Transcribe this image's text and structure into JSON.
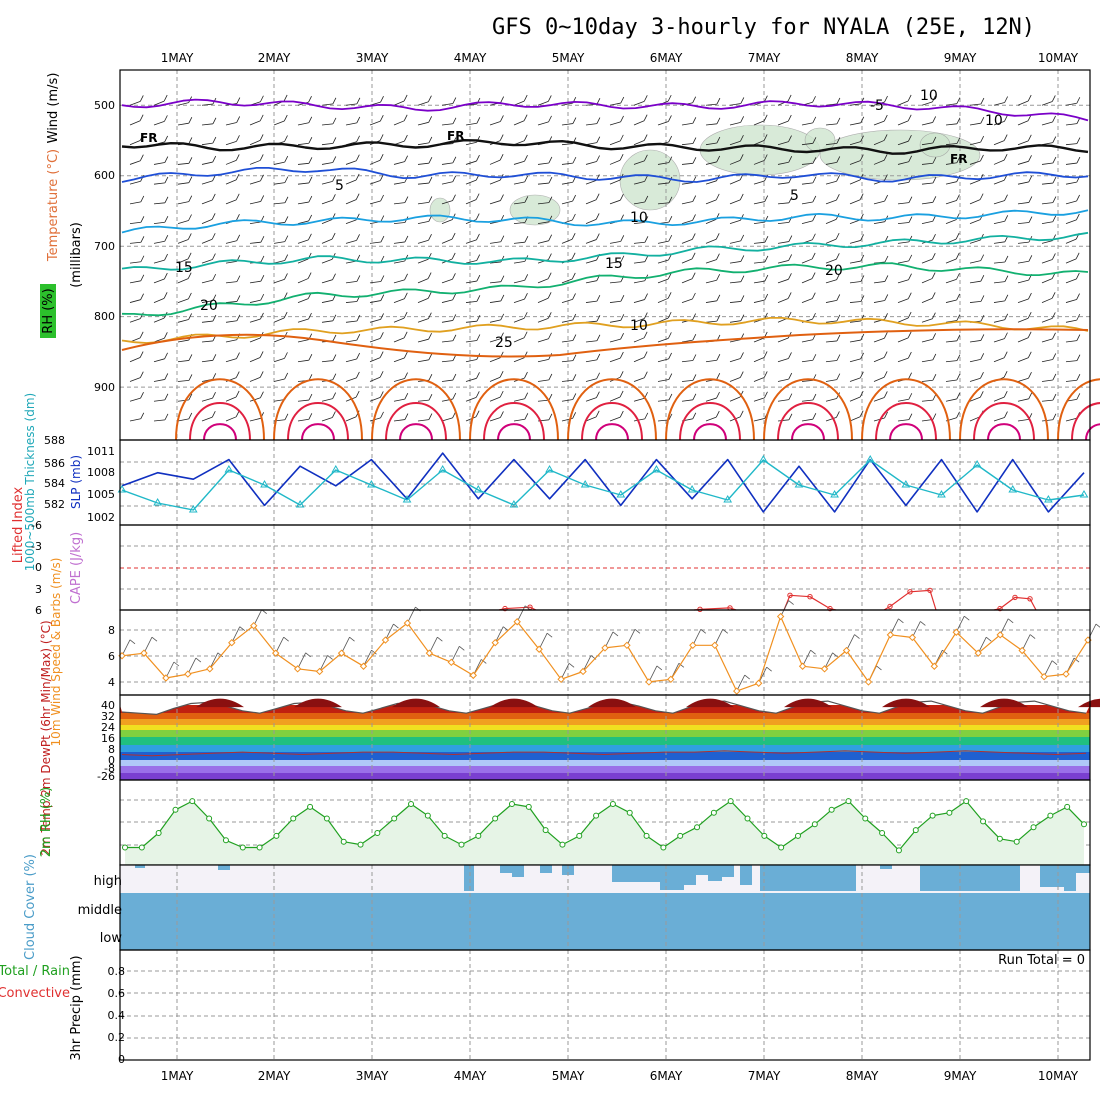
{
  "title": "GFS 0~10day 3-hourly for NYALA (25E, 12N)",
  "colors": {
    "temp_cold": "#7a00c8",
    "temp_5": "#1f4fd6",
    "temp_10": "#1aa0e0",
    "temp_15": "#12b0a0",
    "temp_20": "#12b070",
    "temp_25": "#e0a020",
    "temp_30": "#e06010",
    "temp_35": "#e02040",
    "temp_40": "#d0007a",
    "slp": "#1030c0",
    "thickness": "#20b8c8",
    "wind10": "#f09020",
    "rh2m": "#20a020",
    "cloud": "#6aaed6",
    "lifted": "#e03030"
  },
  "chart_data": [
    {
      "type": "line",
      "panel": "upper-air",
      "ylabel": "(millibars)",
      "y_ticks": [
        "500",
        "600",
        "700",
        "800",
        "900"
      ],
      "x_labels": [
        "1MAY",
        "2MAY",
        "3MAY",
        "4MAY",
        "5MAY",
        "6MAY",
        "7MAY",
        "8MAY",
        "9MAY",
        "10MAY"
      ],
      "legend_labels": [
        "Wind (m/s)",
        "Temperature (°C)",
        "RH (%)"
      ],
      "freezing_label": "FR",
      "contour_labels": [
        "-5",
        "5",
        "5",
        "10",
        "15",
        "15",
        "20",
        "20",
        "25",
        "10",
        "10",
        "10"
      ],
      "series": [
        {
          "name": "-5",
          "values": [
            500,
            495,
            500,
            505,
            498,
            500,
            502,
            497,
            500,
            508,
            520
          ]
        },
        {
          "name": "FR",
          "values": [
            555,
            560,
            558,
            556,
            552,
            558,
            560,
            562,
            565,
            560,
            562
          ]
        },
        {
          "name": "5",
          "values": [
            605,
            595,
            590,
            600,
            598,
            602,
            605,
            598,
            605,
            600,
            598
          ]
        },
        {
          "name": "10",
          "values": [
            680,
            668,
            665,
            660,
            662,
            668,
            665,
            658,
            660,
            655,
            650
          ]
        },
        {
          "name": "15",
          "values": [
            735,
            725,
            718,
            720,
            722,
            715,
            705,
            700,
            695,
            690,
            685
          ]
        },
        {
          "name": "20",
          "values": [
            800,
            785,
            770,
            765,
            760,
            745,
            735,
            730,
            728,
            735,
            740
          ]
        },
        {
          "name": "25",
          "values": [
            835,
            828,
            820,
            818,
            815,
            812,
            808,
            805,
            808,
            812,
            820
          ]
        }
      ]
    },
    {
      "type": "line",
      "panel": "slp-thickness",
      "ylabel_left": "1000~500mb Thickness (dm)",
      "ylabel_right": "SLP (mb)",
      "left_ticks": [
        "588",
        "586",
        "584",
        "582"
      ],
      "right_ticks": [
        "1011",
        "1008",
        "1005",
        "1002"
      ],
      "series": [
        {
          "name": "SLP (mb)",
          "values": [
            1006,
            1008,
            1007,
            1010,
            1003,
            1009,
            1006,
            1010,
            1004,
            1011,
            1004,
            1010,
            1004,
            1010,
            1003,
            1010,
            1004,
            1010,
            1002,
            1009,
            1002,
            1010,
            1003,
            1010,
            1002,
            1010,
            1002,
            1008
          ]
        },
        {
          "name": "1000~500mb Thickness (dm)",
          "values": [
            583.5,
            582.2,
            581.5,
            585.5,
            584.0,
            582.0,
            585.5,
            584.0,
            582.5,
            585.5,
            583.5,
            582.0,
            585.5,
            584.0,
            583.0,
            585.5,
            583.5,
            582.5,
            586.5,
            584.0,
            583.0,
            586.5,
            584.0,
            583.0,
            586.0,
            583.5,
            582.5,
            583.0
          ]
        }
      ]
    },
    {
      "type": "line",
      "panel": "lifted-cape",
      "ylabel": "Lifted Index",
      "ylabel2": "CAPE (J/kg)",
      "y_ticks": [
        "-6",
        "-3",
        "0",
        "3",
        "6"
      ],
      "series": [
        {
          "name": "Lifted Index",
          "values": [
            5.8,
            5.6,
            5.9,
            5.7,
            3.9,
            4.1,
            5.8,
            5.5,
            3.4,
            3.2,
            5.8,
            4.2,
            4.4,
            5.9
          ]
        }
      ]
    },
    {
      "type": "line",
      "panel": "wind10m",
      "ylabel": "10m Wind Speed & Barbs (m/s)",
      "y_ticks": [
        "8",
        "6",
        "4"
      ],
      "series": [
        {
          "name": "10m Wind Speed",
          "values": [
            6,
            6.2,
            4.3,
            4.6,
            5,
            7,
            8.3,
            6.2,
            5,
            4.8,
            6.2,
            5.2,
            7.2,
            8.5,
            6.2,
            5.5,
            4.5,
            7,
            8.6,
            6.5,
            4.2,
            4.8,
            6.6,
            6.8,
            4.0,
            4.2,
            6.8,
            6.8,
            3.3,
            3.9,
            9.0,
            5.2,
            5.0,
            6.4,
            4.0,
            7.6,
            7.4,
            5.2,
            7.8,
            6.2,
            7.6,
            6.4,
            4.4,
            4.6,
            7.2
          ]
        }
      ]
    },
    {
      "type": "area",
      "panel": "temperature-2m",
      "ylabel": "2m Temp 2m DewPt (6hr Min/Max) (°C)",
      "y_ticks": [
        "40",
        "32",
        "24",
        "16",
        "8",
        "0",
        "-8",
        "-26"
      ],
      "series": [
        {
          "name": "2m Temp",
          "values": [
            30,
            29,
            28,
            33,
            37,
            38,
            35,
            31,
            29,
            33,
            37,
            38,
            35,
            31,
            29,
            33,
            37,
            38,
            35,
            31,
            29,
            33,
            37,
            38,
            35,
            31,
            29,
            33,
            37,
            38,
            35,
            31,
            29,
            34,
            38,
            39,
            35,
            31,
            29,
            34,
            38,
            39,
            35,
            31,
            29,
            34,
            38,
            39,
            35,
            31,
            29,
            34,
            38,
            39,
            35,
            31,
            29
          ]
        },
        {
          "name": "2m DewPt",
          "values": [
            -5,
            -6,
            -5,
            -4,
            -3,
            -4,
            -5,
            -4,
            -3,
            -3,
            -4,
            -5,
            -4,
            -3,
            -3,
            -4,
            -5,
            -4,
            -3,
            -3,
            -2,
            -3,
            -4,
            -3,
            -2,
            -3,
            -4,
            -3,
            -2,
            -3,
            -4,
            -5,
            -4
          ]
        }
      ]
    },
    {
      "type": "area",
      "panel": "rh-2m",
      "ylabel": "2m RH (%)",
      "series": [
        {
          "name": "2m RH",
          "values": [
            10,
            10,
            20,
            36,
            42,
            30,
            15,
            10,
            10,
            18,
            30,
            38,
            30,
            14,
            12,
            20,
            30,
            40,
            32,
            18,
            12,
            18,
            30,
            40,
            38,
            22,
            12,
            18,
            32,
            40,
            34,
            18,
            10,
            18,
            24,
            34,
            42,
            30,
            18,
            10,
            18,
            26,
            36,
            42,
            30,
            20,
            8,
            22,
            32,
            34,
            42,
            28,
            16,
            14,
            24,
            32,
            38,
            26
          ]
        }
      ]
    },
    {
      "type": "bar",
      "panel": "cloud-cover",
      "ylabel": "Cloud Cover (%)",
      "categories": [
        "high",
        "middle",
        "low"
      ]
    },
    {
      "type": "bar",
      "panel": "precip",
      "ylabel": "3hr Precip (mm)",
      "legend_labels": [
        "Total / Rain",
        "Convective"
      ],
      "y_ticks": [
        "0.8",
        "0.6",
        "0.4",
        "0.2",
        "0"
      ],
      "annotation": "Run Total = 0",
      "values": []
    }
  ]
}
